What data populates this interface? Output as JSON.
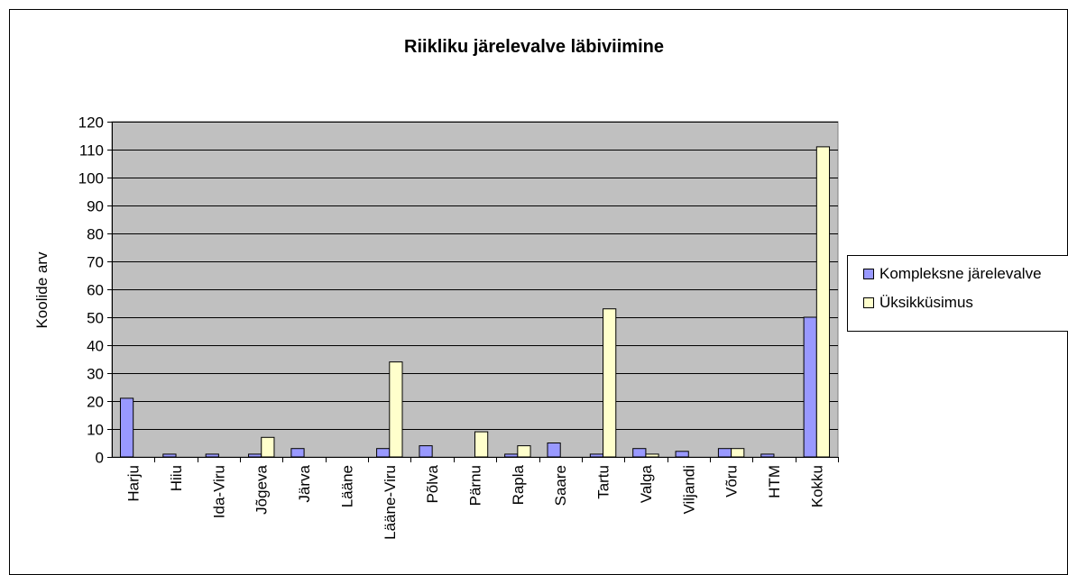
{
  "chart_data": {
    "type": "bar",
    "title": "Riikliku järelevalve läbiviimine",
    "xlabel": "",
    "ylabel": "Koolide arv",
    "ylim": [
      0,
      120
    ],
    "yticks": [
      0,
      10,
      20,
      30,
      40,
      50,
      60,
      70,
      80,
      90,
      100,
      110,
      120
    ],
    "grid": true,
    "legend_position": "right",
    "categories": [
      "Harju",
      "Hiiu",
      "Ida-Viru",
      "Jõgeva",
      "Järva",
      "Lääne",
      "Lääne-Viru",
      "Põlva",
      "Pärnu",
      "Rapla",
      "Saare",
      "Tartu",
      "Valga",
      "Viljandi",
      "Võru",
      "HTM",
      "Kokku"
    ],
    "series": [
      {
        "name": "Kompleksne järelevalve",
        "color": "#9999ff",
        "values": [
          21,
          1,
          1,
          1,
          3,
          0,
          3,
          4,
          0,
          1,
          5,
          1,
          3,
          2,
          3,
          1,
          50
        ]
      },
      {
        "name": "Üksikküsimus",
        "color": "#ffffcc",
        "values": [
          0,
          0,
          0,
          7,
          0,
          0,
          34,
          0,
          9,
          4,
          0,
          53,
          1,
          0,
          3,
          0,
          111
        ]
      }
    ],
    "plot_background": "#c0c0c0"
  }
}
